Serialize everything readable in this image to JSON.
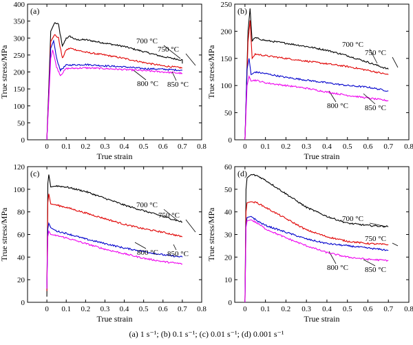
{
  "caption": "(a) 1 s⁻¹; (b) 0.1 s⁻¹; (c) 0.01 s⁻¹; (d) 0.001 s⁻¹",
  "colors": {
    "700": "#000000",
    "750": "#e00000",
    "800": "#0000cc",
    "850": "#ee00ee"
  },
  "chart_data": [
    {
      "type": "line",
      "panel": "(a)",
      "xlabel": "True strain",
      "ylabel": "True stress/MPa",
      "xlim": [
        -0.1,
        0.8
      ],
      "ylim": [
        0,
        400
      ],
      "xticks": [
        "0",
        "0.1",
        "0.2",
        "0.3",
        "0.4",
        "0.5",
        "0.6",
        "0.7",
        "0.8"
      ],
      "yticks": [
        "0",
        "50",
        "100",
        "150",
        "200",
        "250",
        "300",
        "350",
        "400"
      ],
      "series": [
        {
          "name": "700 °C",
          "key": "700",
          "x": [
            0,
            0.02,
            0.04,
            0.06,
            0.08,
            0.1,
            0.12,
            0.15,
            0.2,
            0.3,
            0.4,
            0.5,
            0.6,
            0.7,
            0.7
          ],
          "y": [
            0,
            320,
            345,
            340,
            275,
            300,
            305,
            295,
            295,
            285,
            275,
            260,
            245,
            235,
            225
          ]
        },
        {
          "name": "750 °C",
          "key": "750",
          "x": [
            0,
            0.02,
            0.04,
            0.06,
            0.08,
            0.1,
            0.12,
            0.2,
            0.3,
            0.4,
            0.5,
            0.6,
            0.7
          ],
          "y": [
            0,
            290,
            310,
            300,
            240,
            265,
            270,
            258,
            250,
            240,
            228,
            218,
            212
          ]
        },
        {
          "name": "800 °C",
          "key": "800",
          "x": [
            0,
            0.02,
            0.035,
            0.05,
            0.07,
            0.1,
            0.2,
            0.3,
            0.4,
            0.5,
            0.6,
            0.7
          ],
          "y": [
            0,
            270,
            292,
            240,
            205,
            220,
            222,
            218,
            215,
            210,
            208,
            205
          ]
        },
        {
          "name": "850 °C",
          "key": "850",
          "x": [
            0,
            0.02,
            0.03,
            0.05,
            0.07,
            0.1,
            0.2,
            0.3,
            0.4,
            0.5,
            0.6,
            0.7
          ],
          "y": [
            0,
            240,
            265,
            215,
            190,
            210,
            212,
            210,
            207,
            204,
            200,
            196
          ]
        }
      ],
      "annotations": [
        "(a)",
        "700 °C",
        "750 °C",
        "800 °C",
        "850 °C"
      ]
    },
    {
      "type": "line",
      "panel": "(b)",
      "xlabel": "True strain",
      "ylabel": "True stress/MPa",
      "xlim": [
        -0.05,
        0.8
      ],
      "ylim": [
        0,
        250
      ],
      "xticks": [
        "0",
        "0.1",
        "0.2",
        "0.3",
        "0.4",
        "0.5",
        "0.6",
        "0.7",
        "0.8"
      ],
      "yticks": [
        "0",
        "50",
        "100",
        "150",
        "200",
        "250"
      ],
      "series": [
        {
          "name": "700 °C",
          "key": "700",
          "x": [
            0,
            0.015,
            0.025,
            0.035,
            0.05,
            0.1,
            0.2,
            0.3,
            0.4,
            0.5,
            0.6,
            0.7
          ],
          "y": [
            0,
            200,
            242,
            182,
            188,
            183,
            178,
            172,
            165,
            155,
            143,
            130
          ]
        },
        {
          "name": "750 °C",
          "key": "750",
          "x": [
            0,
            0.015,
            0.025,
            0.035,
            0.05,
            0.1,
            0.2,
            0.3,
            0.4,
            0.5,
            0.6,
            0.7
          ],
          "y": [
            0,
            180,
            220,
            150,
            158,
            155,
            150,
            145,
            140,
            135,
            128,
            120
          ]
        },
        {
          "name": "800 °C",
          "key": "800",
          "x": [
            0,
            0.01,
            0.02,
            0.03,
            0.05,
            0.1,
            0.2,
            0.3,
            0.4,
            0.5,
            0.6,
            0.7
          ],
          "y": [
            0,
            130,
            150,
            120,
            125,
            122,
            115,
            110,
            105,
            100,
            97,
            90
          ]
        },
        {
          "name": "850 °C",
          "key": "850",
          "x": [
            0,
            0.01,
            0.02,
            0.03,
            0.05,
            0.1,
            0.2,
            0.3,
            0.4,
            0.5,
            0.6,
            0.7
          ],
          "y": [
            0,
            100,
            117,
            108,
            110,
            105,
            100,
            95,
            88,
            82,
            77,
            72
          ]
        }
      ],
      "annotations": [
        "(b)",
        "700 °C",
        "750 °C",
        "800 °C",
        "850 °C"
      ]
    },
    {
      "type": "line",
      "panel": "(c)",
      "xlabel": "True strain",
      "ylabel": "True stress/MPa",
      "xlim": [
        -0.1,
        0.8
      ],
      "ylim": [
        0,
        120
      ],
      "xticks": [
        "0",
        "0.1",
        "0.2",
        "0.3",
        "0.4",
        "0.5",
        "0.6",
        "0.7",
        "0.8"
      ],
      "yticks": [
        "0",
        "20",
        "40",
        "60",
        "80",
        "100",
        "120"
      ],
      "series": [
        {
          "name": "700 °C",
          "key": "700",
          "x": [
            0,
            0.005,
            0.01,
            0.02,
            0.05,
            0.1,
            0.2,
            0.3,
            0.4,
            0.5,
            0.6,
            0.7
          ],
          "y": [
            5,
            105,
            113,
            102,
            103,
            102,
            98,
            92,
            86,
            81,
            76,
            71
          ]
        },
        {
          "name": "750 °C",
          "key": "750",
          "x": [
            0,
            0.005,
            0.01,
            0.02,
            0.05,
            0.1,
            0.2,
            0.3,
            0.4,
            0.5,
            0.6,
            0.7
          ],
          "y": [
            10,
            88,
            96,
            87,
            86,
            84,
            79,
            74,
            69,
            65,
            62,
            58
          ]
        },
        {
          "name": "800 °C",
          "key": "800",
          "x": [
            0,
            0.005,
            0.01,
            0.02,
            0.05,
            0.1,
            0.2,
            0.3,
            0.4,
            0.5,
            0.6,
            0.7
          ],
          "y": [
            12,
            65,
            70,
            66,
            63,
            61,
            56,
            52,
            48,
            45,
            42,
            40
          ]
        },
        {
          "name": "850 °C",
          "key": "850",
          "x": [
            0,
            0.005,
            0.01,
            0.02,
            0.05,
            0.1,
            0.2,
            0.3,
            0.4,
            0.5,
            0.6,
            0.7
          ],
          "y": [
            12,
            58,
            63,
            60,
            59,
            57,
            52,
            47,
            43,
            39,
            36,
            34
          ]
        }
      ],
      "annotations": [
        "(c)",
        "700 °C",
        "750 °C",
        "800 °C",
        "850 °C"
      ]
    },
    {
      "type": "line",
      "panel": "(d)",
      "xlabel": "True strain",
      "ylabel": "True stress/MPa",
      "xlim": [
        -0.05,
        0.8
      ],
      "ylim": [
        0,
        60
      ],
      "xticks": [
        "0",
        "0.1",
        "0.2",
        "0.3",
        "0.4",
        "0.5",
        "0.6",
        "0.7",
        "0.8"
      ],
      "yticks": [
        "0",
        "10",
        "20",
        "30",
        "40",
        "50",
        "60"
      ],
      "series": [
        {
          "name": "700 °C",
          "key": "700",
          "x": [
            0,
            0.005,
            0.01,
            0.03,
            0.06,
            0.1,
            0.2,
            0.3,
            0.4,
            0.5,
            0.6,
            0.7
          ],
          "y": [
            0,
            50,
            55,
            56.5,
            56,
            54,
            48,
            42,
            38,
            35,
            34,
            33.5
          ]
        },
        {
          "name": "750 °C",
          "key": "750",
          "x": [
            0,
            0.005,
            0.01,
            0.03,
            0.06,
            0.1,
            0.2,
            0.3,
            0.4,
            0.5,
            0.6,
            0.7
          ],
          "y": [
            0,
            40,
            44,
            44.5,
            44,
            42,
            37,
            32,
            29,
            27,
            26,
            25.5
          ]
        },
        {
          "name": "800 °C",
          "key": "800",
          "x": [
            0,
            0.005,
            0.01,
            0.03,
            0.06,
            0.1,
            0.2,
            0.3,
            0.4,
            0.5,
            0.6,
            0.7
          ],
          "y": [
            0,
            34,
            37.5,
            38,
            36,
            34,
            31,
            28,
            26,
            25,
            24,
            23
          ]
        },
        {
          "name": "850 °C",
          "key": "850",
          "x": [
            0,
            0.005,
            0.01,
            0.03,
            0.06,
            0.1,
            0.2,
            0.3,
            0.4,
            0.5,
            0.6,
            0.7
          ],
          "y": [
            0,
            33,
            36,
            36.5,
            35,
            32.5,
            28.5,
            25,
            22,
            20,
            19,
            18.5
          ]
        }
      ],
      "annotations": [
        "(d)",
        "700 °C",
        "750 °C",
        "800 °C",
        "850 °C"
      ]
    }
  ]
}
